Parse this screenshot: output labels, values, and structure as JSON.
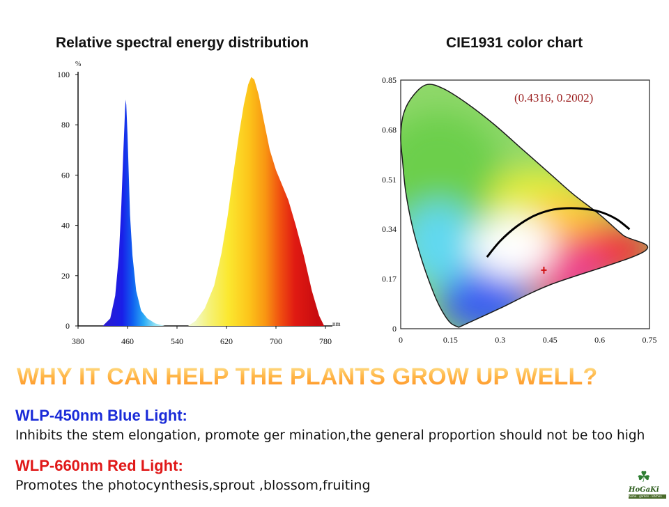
{
  "chart_data": [
    {
      "type": "area",
      "title": "Relative spectral energy distribution",
      "ylabel": "%",
      "xlabel": "nm",
      "xlim": [
        380,
        780
      ],
      "ylim": [
        0,
        100
      ],
      "x_ticks": [
        "380",
        "460",
        "540",
        "620",
        "700",
        "780"
      ],
      "y_ticks": [
        "0",
        "20",
        "40",
        "60",
        "80",
        "100"
      ],
      "series": [
        {
          "name": "Blue peak",
          "x": [
            420,
            432,
            440,
            446,
            450,
            453,
            455,
            456,
            457,
            458,
            460,
            462,
            464,
            468,
            474,
            482,
            492,
            505,
            520
          ],
          "y": [
            0,
            3,
            12,
            28,
            48,
            68,
            80,
            86,
            90,
            88,
            76,
            60,
            44,
            28,
            14,
            6,
            3,
            1,
            0
          ]
        },
        {
          "name": "Red peak",
          "x": [
            558,
            570,
            585,
            600,
            612,
            622,
            632,
            640,
            648,
            655,
            660,
            665,
            672,
            680,
            690,
            700,
            710,
            720,
            732,
            745,
            758,
            770,
            778
          ],
          "y": [
            0,
            2,
            7,
            16,
            29,
            44,
            62,
            76,
            88,
            96,
            99,
            98,
            92,
            82,
            70,
            62,
            56,
            50,
            40,
            28,
            14,
            4,
            0
          ]
        }
      ]
    },
    {
      "type": "scatter",
      "title": "CIE1931 color chart",
      "xlim": [
        0,
        0.75
      ],
      "ylim": [
        0,
        0.85
      ],
      "x_ticks": [
        "0",
        "0.15",
        "0.3",
        "0.45",
        "0.6",
        "0.75"
      ],
      "y_ticks": [
        "0",
        "0.17",
        "0.34",
        "0.51",
        "0.68",
        "0.85"
      ],
      "annotation": "(0.4316,  0.2002)",
      "point": {
        "x": 0.4316,
        "y": 0.2002
      },
      "locus": {
        "x": [
          0.175,
          0.15,
          0.125,
          0.1,
          0.065,
          0.035,
          0.015,
          0.005,
          0.0,
          0.01,
          0.04,
          0.08,
          0.13,
          0.2,
          0.28,
          0.37,
          0.45,
          0.52,
          0.6,
          0.67,
          0.735,
          0.45,
          0.3,
          0.175
        ],
        "y": [
          0.005,
          0.02,
          0.06,
          0.12,
          0.23,
          0.35,
          0.47,
          0.58,
          0.66,
          0.74,
          0.8,
          0.835,
          0.82,
          0.77,
          0.7,
          0.61,
          0.53,
          0.46,
          0.39,
          0.32,
          0.265,
          0.15,
          0.07,
          0.005
        ]
      },
      "planckian": {
        "x": [
          0.26,
          0.3,
          0.35,
          0.4,
          0.45,
          0.5,
          0.55,
          0.6,
          0.65,
          0.69
        ],
        "y": [
          0.245,
          0.3,
          0.35,
          0.385,
          0.405,
          0.412,
          0.41,
          0.4,
          0.375,
          0.34
        ]
      }
    }
  ],
  "headline": "WHY IT CAN HELP THE PLANTS GROW UP WELL?",
  "blue_light": {
    "heading": "WLP-450nm Blue Light:",
    "description": "Inhibits the stem elongation, promote ger mination,the general proportion should not be too high",
    "color": "#1a2bd8"
  },
  "red_light": {
    "heading": "WLP-660nm Red Light:",
    "description": "Promotes the photocynthesis,sprout ,blossom,fruiting",
    "color": "#e01818"
  },
  "logo": {
    "text": "HoGaKi",
    "subtext": "home · garden · kitchen"
  }
}
